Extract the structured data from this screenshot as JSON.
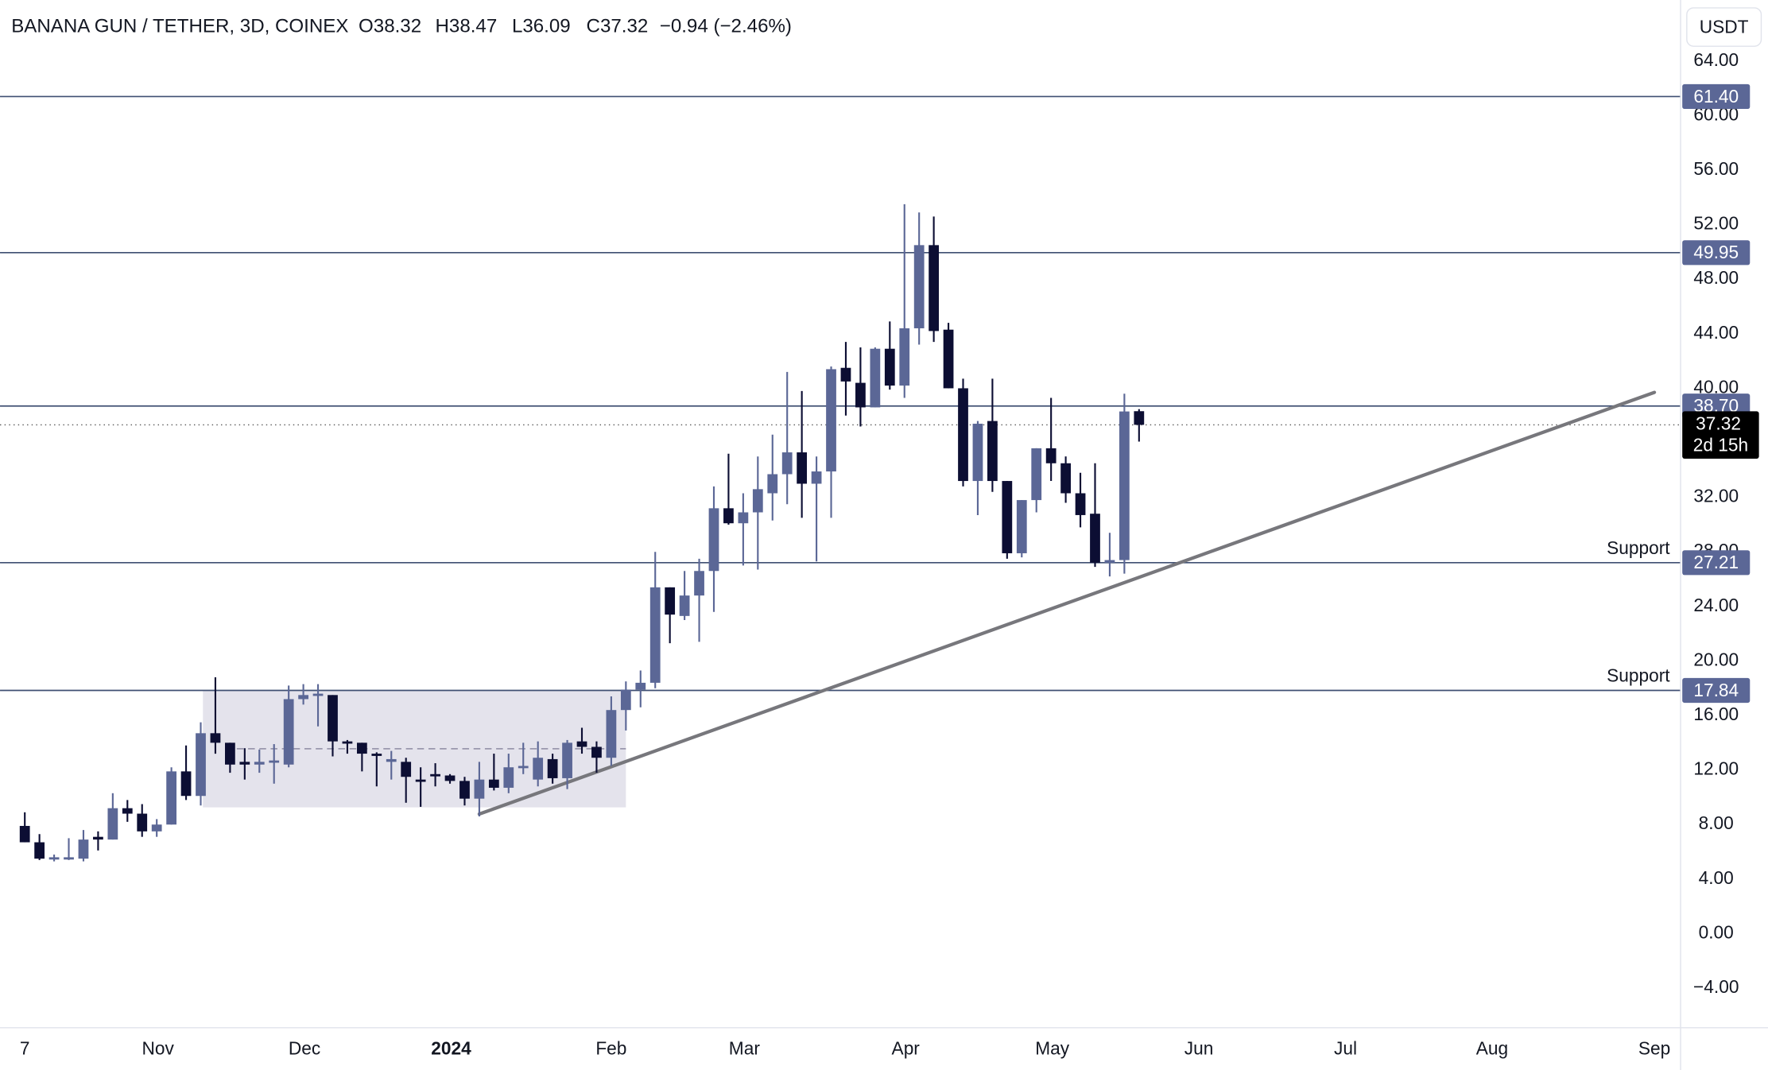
{
  "header": {
    "title": "BANANA GUN / TETHER, 3D, COINEX",
    "ohlc": [
      "O38.32",
      "H38.47",
      "L36.09",
      "C37.32"
    ],
    "change": "−0.94 (−2.46%)",
    "currency_button": "USDT"
  },
  "chart_data": {
    "type": "candlestick",
    "x": [
      0,
      1,
      2,
      3,
      4,
      5,
      6,
      7,
      8,
      9,
      10,
      11,
      12,
      13,
      14,
      15,
      16,
      17,
      18,
      19,
      20,
      21,
      22,
      23,
      24,
      25,
      26,
      27,
      28,
      29,
      30,
      31,
      32,
      33,
      34,
      35,
      36,
      37,
      38,
      39,
      40,
      41,
      42,
      43,
      44,
      45,
      46,
      47,
      48,
      49,
      50,
      51,
      52,
      53,
      54,
      55,
      56,
      57,
      58,
      59,
      60,
      61,
      62,
      63,
      64,
      65,
      66,
      67,
      68,
      69,
      70,
      71,
      72,
      73,
      74,
      75,
      76
    ],
    "open": [
      7.9,
      6.7,
      5.5,
      5.5,
      5.5,
      7.1,
      6.9,
      9.2,
      8.8,
      7.5,
      8.0,
      11.9,
      10.1,
      14.7,
      14.0,
      12.6,
      12.4,
      12.6,
      12.4,
      17.2,
      17.5,
      17.5,
      14.1,
      14.0,
      13.2,
      12.6,
      12.6,
      11.3,
      11.7,
      11.6,
      11.2,
      9.9,
      11.3,
      10.7,
      12.2,
      11.3,
      12.8,
      11.4,
      14.1,
      13.7,
      12.9,
      16.4,
      17.9,
      18.4,
      25.4,
      23.3,
      24.8,
      26.6,
      31.2,
      30.1,
      30.9,
      32.3,
      33.7,
      35.3,
      33.0,
      33.9,
      41.5,
      40.4,
      38.6,
      42.9,
      40.2,
      44.4,
      50.5,
      44.3,
      40.0,
      33.2,
      37.6,
      33.2,
      27.9,
      31.8,
      35.6,
      34.5,
      32.3,
      30.8,
      27.2,
      27.4,
      38.32
    ],
    "high": [
      8.9,
      7.3,
      5.8,
      7.0,
      7.6,
      7.5,
      10.3,
      9.8,
      9.5,
      8.4,
      12.2,
      13.8,
      15.5,
      18.8,
      14.0,
      13.6,
      13.5,
      13.9,
      18.2,
      18.3,
      18.3,
      17.5,
      14.2,
      14.0,
      13.3,
      13.4,
      12.9,
      12.2,
      12.5,
      11.7,
      11.5,
      12.6,
      13.2,
      13.2,
      14.0,
      14.1,
      13.2,
      14.2,
      15.1,
      14.1,
      17.4,
      18.5,
      19.3,
      28.0,
      25.4,
      26.6,
      27.5,
      32.8,
      35.2,
      32.3,
      35.0,
      36.6,
      41.2,
      39.8,
      35.0,
      41.6,
      43.4,
      43.0,
      43.0,
      44.9,
      53.5,
      52.9,
      52.6,
      44.8,
      40.7,
      37.6,
      40.7,
      33.2,
      31.8,
      35.6,
      39.3,
      35.0,
      33.8,
      34.5,
      29.4,
      39.6,
      38.47
    ],
    "low": [
      6.7,
      5.4,
      5.3,
      5.4,
      5.3,
      6.1,
      6.9,
      8.2,
      7.1,
      7.1,
      8.0,
      9.8,
      9.4,
      13.2,
      11.8,
      11.3,
      11.8,
      11.0,
      12.2,
      16.8,
      15.2,
      13.0,
      13.2,
      11.9,
      10.8,
      11.3,
      9.6,
      9.3,
      10.8,
      11.0,
      9.4,
      8.6,
      10.5,
      10.3,
      11.7,
      10.8,
      11.0,
      10.6,
      13.2,
      11.8,
      12.3,
      14.9,
      16.6,
      18.0,
      21.3,
      23.0,
      21.4,
      23.6,
      30.0,
      27.0,
      26.7,
      30.3,
      31.5,
      30.5,
      27.3,
      30.5,
      38.0,
      37.2,
      38.6,
      39.9,
      39.3,
      43.2,
      43.4,
      40.0,
      32.8,
      30.7,
      32.4,
      27.5,
      27.6,
      30.9,
      33.2,
      31.6,
      29.8,
      26.9,
      26.2,
      26.4,
      36.09
    ],
    "close": [
      6.7,
      5.5,
      5.6,
      5.6,
      6.9,
      6.9,
      9.2,
      8.8,
      7.5,
      8.0,
      11.9,
      10.1,
      14.7,
      14.0,
      12.4,
      12.4,
      12.6,
      12.7,
      17.2,
      17.5,
      17.6,
      14.1,
      14.0,
      13.2,
      13.1,
      12.8,
      11.5,
      11.2,
      11.6,
      11.2,
      9.9,
      11.3,
      10.7,
      12.2,
      12.3,
      12.9,
      11.4,
      14.0,
      13.7,
      12.9,
      16.4,
      17.9,
      18.4,
      25.4,
      23.4,
      24.8,
      26.6,
      31.2,
      30.1,
      30.9,
      32.6,
      33.7,
      35.3,
      33.0,
      33.9,
      41.4,
      40.5,
      38.6,
      42.9,
      40.2,
      44.4,
      50.5,
      44.2,
      40.0,
      33.2,
      37.4,
      33.2,
      27.9,
      31.8,
      35.6,
      34.5,
      32.3,
      30.7,
      27.2,
      27.4,
      38.3,
      37.32
    ],
    "up_color": "#5b6796",
    "down_color": "#0c0e33",
    "xlim": [
      -1.69,
      112.9
    ],
    "xticks": [
      {
        "value": 0,
        "label": "7"
      },
      {
        "value": 9.08,
        "label": "Nov"
      },
      {
        "value": 19.08,
        "label": "Dec"
      },
      {
        "value": 29.08,
        "label": "2024"
      },
      {
        "value": 40,
        "label": "Feb"
      },
      {
        "value": 49.08,
        "label": "Mar"
      },
      {
        "value": 60.08,
        "label": "Apr"
      },
      {
        "value": 70.08,
        "label": "May"
      },
      {
        "value": 80.08,
        "label": "Jun"
      },
      {
        "value": 90.08,
        "label": "Jul"
      },
      {
        "value": 100.08,
        "label": "Aug"
      },
      {
        "value": 111.15,
        "label": "Sep"
      }
    ],
    "ylim": [
      -6.86,
      68.48
    ],
    "yticks": [
      {
        "value": 64,
        "label": "64.00"
      },
      {
        "value": 60,
        "label": "60.00"
      },
      {
        "value": 56,
        "label": "56.00"
      },
      {
        "value": 52,
        "label": "52.00"
      },
      {
        "value": 48,
        "label": "48.00"
      },
      {
        "value": 44,
        "label": "44.00"
      },
      {
        "value": 40,
        "label": "40.00"
      },
      {
        "value": 32,
        "label": "32.00"
      },
      {
        "value": 28,
        "label": "28.00"
      },
      {
        "value": 24,
        "label": "24.00"
      },
      {
        "value": 20,
        "label": "20.00"
      },
      {
        "value": 16,
        "label": "16.00"
      },
      {
        "value": 12,
        "label": "12.00"
      },
      {
        "value": 8,
        "label": "8.00"
      },
      {
        "value": 4,
        "label": "4.00"
      },
      {
        "value": 0,
        "label": "0.00"
      },
      {
        "value": -4,
        "label": "−4.00"
      }
    ],
    "levels": [
      {
        "value": 61.4,
        "label": "61.40"
      },
      {
        "value": 49.95,
        "label": "49.95"
      },
      {
        "value": 38.7,
        "label": "38.70"
      },
      {
        "value": 27.21,
        "label": "27.21",
        "note": "Support"
      },
      {
        "value": 17.84,
        "label": "17.84",
        "note": "Support"
      }
    ],
    "level_color": "#3f4f72",
    "last_price": {
      "value": 37.32,
      "label": "37.32",
      "countdown": "2d 15h"
    },
    "trendline": {
      "x": [
        31,
        111.15
      ],
      "y": [
        8.77,
        39.7
      ],
      "color": "#77777c"
    },
    "range_box": {
      "x": [
        12.15,
        41
      ],
      "y": [
        9.26,
        17.84
      ],
      "mid": 13.56,
      "mid_x": 14.46,
      "color": "#e4e3ec"
    }
  }
}
